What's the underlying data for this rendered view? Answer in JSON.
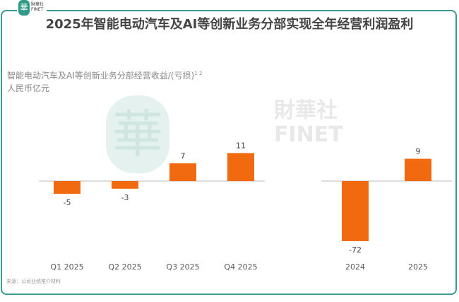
{
  "header": {
    "logo_text": "財華社 FINET",
    "title": "2025年智能电动汽车及AI等创新业务分部实现全年经营利润盈利"
  },
  "axis": {
    "ylabel_line1": "智能电动汽车及AI等创新业务分部经营收益/(亏损)",
    "ylabel_sup": "1 2",
    "unit": "人民币亿元"
  },
  "source": "来源：公司业绩推介材料",
  "watermark": {
    "mark": "華",
    "text": "財華社",
    "text2": "FINET"
  },
  "colors": {
    "bar": "#f26a10",
    "frame": "#3a9a92",
    "axis": "#bbbbbb"
  },
  "chart_data": [
    {
      "type": "bar",
      "categories": [
        "Q1 2025",
        "Q2 2025",
        "Q3 2025",
        "Q4 2025"
      ],
      "values": [
        -5,
        -3,
        7,
        11
      ]
    },
    {
      "type": "bar",
      "categories": [
        "2024",
        "2025"
      ],
      "values": [
        -72,
        9
      ]
    }
  ]
}
